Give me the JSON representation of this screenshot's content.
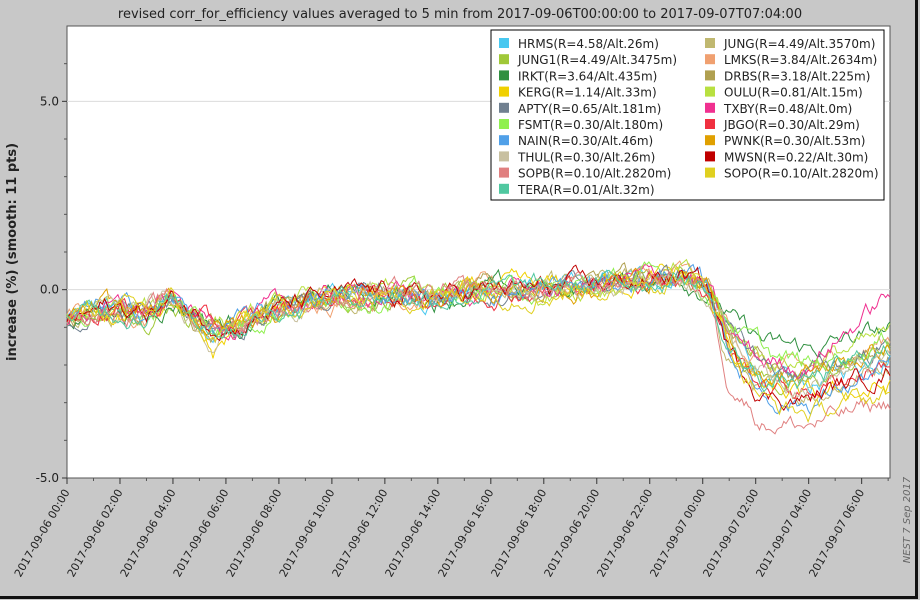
{
  "chart_data": {
    "type": "line",
    "title": "revised corr_for_efficiency values averaged to 5 min from 2017-09-06T00:00:00 to 2017-09-07T07:04:00",
    "ylabel": "increase (%) (smooth: 11 pts)",
    "xlabel": "",
    "ylim": [
      -5,
      7
    ],
    "yticks": [
      {
        "value": 5,
        "label": "5.0"
      },
      {
        "value": 0,
        "label": "0.0"
      },
      {
        "value": -5,
        "label": "-5.0"
      }
    ],
    "xlim_hours": [
      0,
      31.07
    ],
    "xticks": [
      {
        "hour": 0,
        "label": "2017-09-06 00:00"
      },
      {
        "hour": 2,
        "label": "2017-09-06 02:00"
      },
      {
        "hour": 4,
        "label": "2017-09-06 04:00"
      },
      {
        "hour": 6,
        "label": "2017-09-06 06:00"
      },
      {
        "hour": 8,
        "label": "2017-09-06 08:00"
      },
      {
        "hour": 10,
        "label": "2017-09-06 10:00"
      },
      {
        "hour": 12,
        "label": "2017-09-06 12:00"
      },
      {
        "hour": 14,
        "label": "2017-09-06 14:00"
      },
      {
        "hour": 16,
        "label": "2017-09-06 16:00"
      },
      {
        "hour": 18,
        "label": "2017-09-06 18:00"
      },
      {
        "hour": 20,
        "label": "2017-09-06 20:00"
      },
      {
        "hour": 22,
        "label": "2017-09-06 22:00"
      },
      {
        "hour": 24,
        "label": "2017-09-07 00:00"
      },
      {
        "hour": 26,
        "label": "2017-09-07 02:00"
      },
      {
        "hour": 28,
        "label": "2017-09-07 04:00"
      },
      {
        "hour": 30,
        "label": "2017-09-07 06:00"
      }
    ],
    "grid": "horizontal",
    "legend_position": "top-right",
    "watermark": "NEST  7 Sep 2017",
    "series": [
      {
        "name": "HRMS(R=4.58/Alt.26m)",
        "color": "#48c8f0",
        "trough": -2.6,
        "end": -1.6,
        "dip": -1.0
      },
      {
        "name": "JUNG(R=4.49/Alt.3570m)",
        "color": "#c0b870",
        "trough": -2.8,
        "end": -1.9,
        "dip": -1.2
      },
      {
        "name": "JUNG1(R=4.49/Alt.3475m)",
        "color": "#a0c838",
        "trough": -2.6,
        "end": -1.5,
        "dip": -1.1
      },
      {
        "name": "LMKS(R=3.84/Alt.2634m)",
        "color": "#f0a070",
        "trough": -2.2,
        "end": -1.3,
        "dip": -0.9
      },
      {
        "name": "IRKT(R=3.64/Alt.435m)",
        "color": "#309040",
        "trough": -1.6,
        "end": -1.1,
        "dip": -0.8
      },
      {
        "name": "DRBS(R=3.18/Alt.225m)",
        "color": "#b0a050",
        "trough": -2.4,
        "end": -1.6,
        "dip": -1.3
      },
      {
        "name": "KERG(R=1.14/Alt.33m)",
        "color": "#f0d000",
        "trough": -2.9,
        "end": -2.6,
        "dip": -1.8
      },
      {
        "name": "OULU(R=0.81/Alt.15m)",
        "color": "#b8e040",
        "trough": -1.9,
        "end": -1.3,
        "dip": -0.7
      },
      {
        "name": "APTY(R=0.65/Alt.181m)",
        "color": "#708090",
        "trough": -2.2,
        "end": -1.5,
        "dip": -0.8
      },
      {
        "name": "TXBY(R=0.48/Alt.0m)",
        "color": "#f03090",
        "trough": -2.0,
        "end": -0.1,
        "dip": -0.9
      },
      {
        "name": "FSMT(R=0.30/Alt.180m)",
        "color": "#90f050",
        "trough": -2.0,
        "end": -1.3,
        "dip": -0.9
      },
      {
        "name": "JBGO(R=0.30/Alt.29m)",
        "color": "#f03040",
        "trough": -2.7,
        "end": -1.9,
        "dip": -1.0
      },
      {
        "name": "NAIN(R=0.30/Alt.46m)",
        "color": "#50a0e8",
        "trough": -3.0,
        "end": -2.1,
        "dip": -1.1
      },
      {
        "name": "PWNK(R=0.30/Alt.53m)",
        "color": "#e0a000",
        "trough": -2.3,
        "end": -1.5,
        "dip": -1.0
      },
      {
        "name": "THUL(R=0.30/Alt.26m)",
        "color": "#c8c0a0",
        "trough": -2.4,
        "end": -1.9,
        "dip": -1.2
      },
      {
        "name": "MWSN(R=0.22/Alt.30m)",
        "color": "#c00000",
        "trough": -2.9,
        "end": -2.1,
        "dip": -0.8
      },
      {
        "name": "SOPB(R=0.10/Alt.2820m)",
        "color": "#e08080",
        "trough": -3.6,
        "end": -3.0,
        "dip": -1.0
      },
      {
        "name": "SOPO(R=0.10/Alt.2820m)",
        "color": "#e0d020",
        "trough": -3.3,
        "end": -2.8,
        "dip": -1.4
      },
      {
        "name": "TERA(R=0.01/Alt.32m)",
        "color": "#50c8a0",
        "trough": -2.5,
        "end": -1.6,
        "dip": -0.9
      }
    ]
  }
}
